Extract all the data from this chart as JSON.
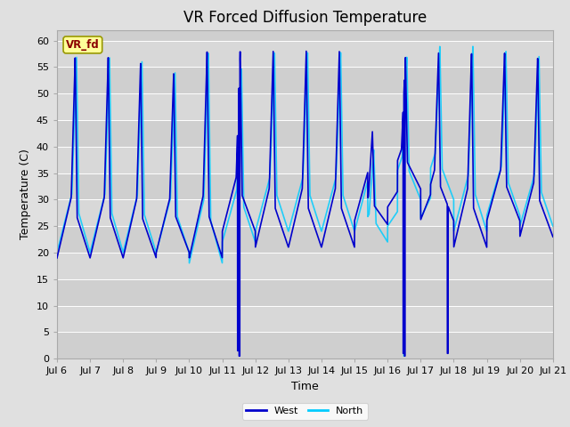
{
  "title": "VR Forced Diffusion Temperature",
  "xlabel": "Time",
  "ylabel": "Temperature (C)",
  "ylim": [
    0,
    62
  ],
  "west_color": "#0000CC",
  "north_color": "#00CCFF",
  "fig_bg": "#E0E0E0",
  "plot_bg": "#D8D8D8",
  "band_colors": [
    "#DCDCDC",
    "#C8C8C8"
  ],
  "annotation_text": "VR_fd",
  "annotation_bg": "#FFFF99",
  "annotation_fg": "#8B0000",
  "annotation_edge": "#999900",
  "title_fontsize": 12,
  "axis_fontsize": 9,
  "tick_fontsize": 8,
  "line_width": 1.2,
  "xtick_labels": [
    "Jul 6",
    "Jul 7",
    "Jul 8",
    "Jul 9",
    "Jul 10",
    "Jul 11",
    "Jul 12",
    "Jul 13",
    "Jul 14",
    "Jul 15",
    "Jul 16",
    "Jul 17",
    "Jul 18",
    "Jul 19",
    "Jul 20",
    "Jul 21"
  ]
}
